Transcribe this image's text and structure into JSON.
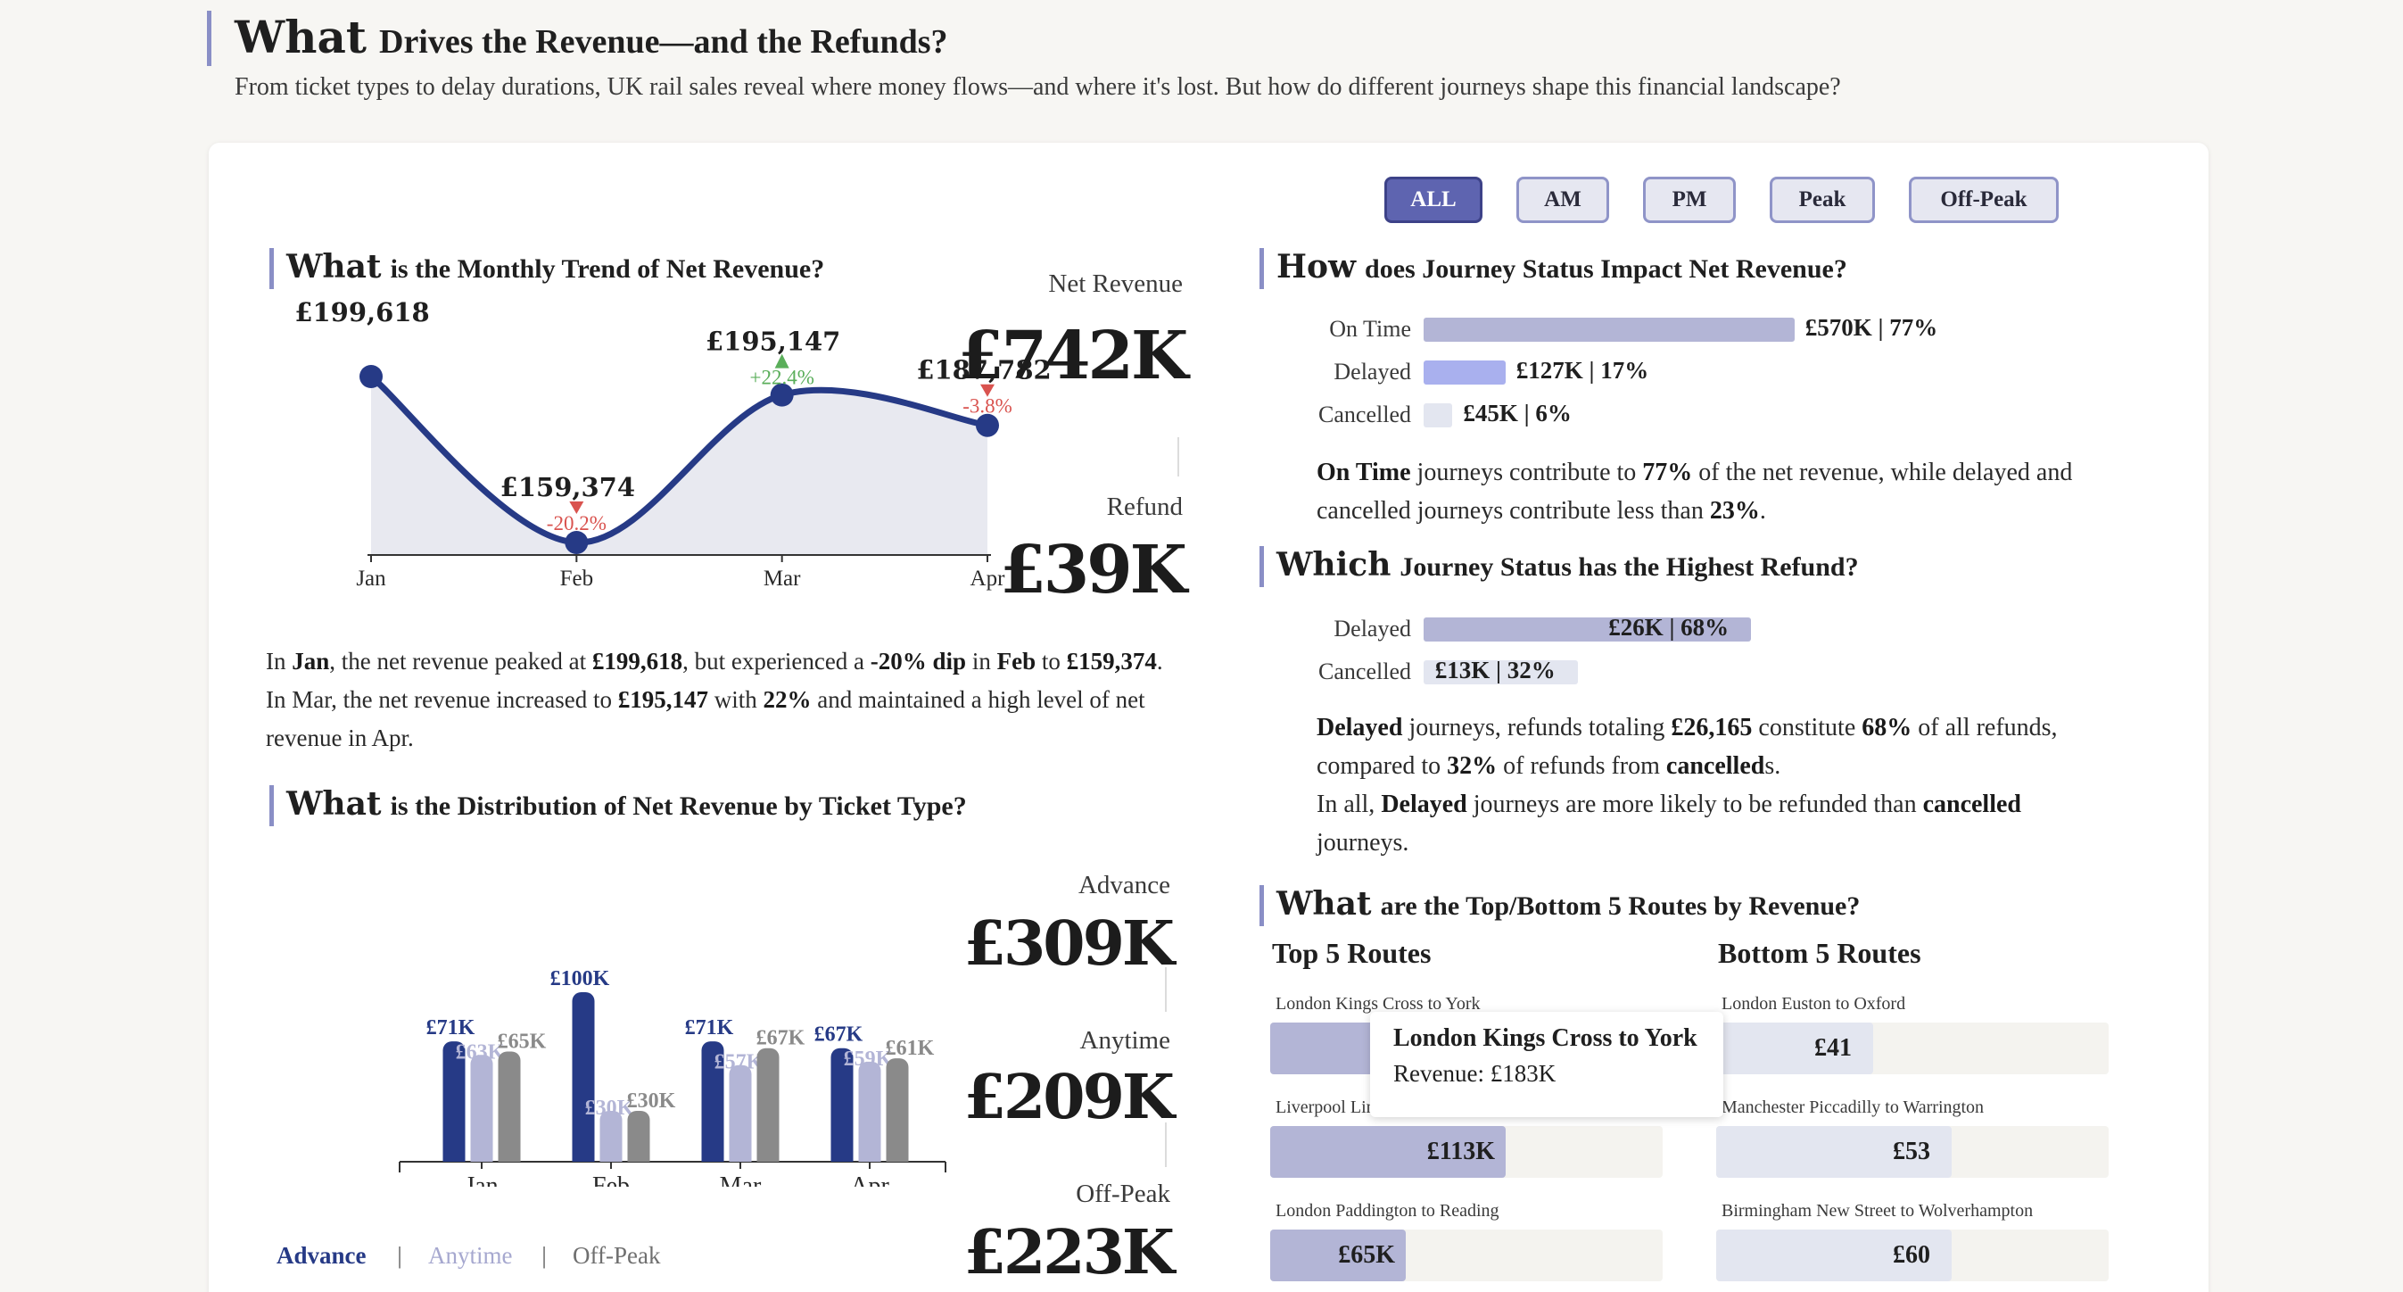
{
  "header": {
    "title_bold": "What",
    "title_rest": "Drives the Revenue—and the Refunds?",
    "subtitle": "From ticket types to delay durations, UK rail sales reveal where money flows—and where it's lost. But how do different journeys shape this financial landscape?"
  },
  "filters": [
    "ALL",
    "AM",
    "PM",
    "Peak",
    "Off-Peak"
  ],
  "filter_active": "ALL",
  "trend": {
    "title_bold": "What",
    "title_rest": "is the Monthly Trend of Net Revenue?",
    "points": [
      {
        "label": "£199,618",
        "change": ""
      },
      {
        "label": "£159,374",
        "change": "-20.2%"
      },
      {
        "label": "£195,147",
        "change": "+22.4%"
      },
      {
        "label": "£187,782",
        "change": "-3.8%"
      }
    ],
    "chart_data": {
      "type": "area",
      "categories": [
        "Jan",
        "Feb",
        "Mar",
        "Apr"
      ],
      "values": [
        199618,
        159374,
        195147,
        187782
      ],
      "changes": [
        "",
        "-20.2%",
        "+22.4%",
        "-3.8%"
      ],
      "ylim": [
        159374,
        199618
      ],
      "colors": {
        "line": "#263a86",
        "fill": "#e8e9f0",
        "up": "#5aae5a",
        "down": "#d9534f"
      }
    }
  },
  "kpi": {
    "net_label": "Net Revenue",
    "net_value": "£742K",
    "refund_label": "Refund",
    "refund_value": "£39K"
  },
  "trend_text": {
    "l1_a": "In ",
    "l1_b": "Jan",
    "l1_c": ", the net revenue peaked at ",
    "l1_d": "£199,618",
    "l1_e": ", but experienced a ",
    "l1_f": "-20% dip",
    "l1_g": " in ",
    "l1_h": "Feb",
    "l1_i": " to ",
    "l1_j": "£159,374",
    "l1_k": ".",
    "l2_a": "In Mar, the net revenue increased to ",
    "l2_b": "£195,147",
    "l2_c": " with ",
    "l2_d": "22%",
    "l2_e": " and maintained a high level of net",
    "l3": "revenue in Apr."
  },
  "ticket": {
    "title_bold": "What",
    "title_rest": "is the Distribution of Net Revenue by Ticket Type?",
    "labels": {
      "Advance": [
        "£71K",
        "£100K",
        "£71K",
        "£67K"
      ],
      "Anytime": [
        "£63K",
        "£30K",
        "£57K",
        "£59K"
      ],
      "Off-Peak": [
        "£65K",
        "£30K",
        "£67K",
        "£61K"
      ]
    },
    "chart_data": {
      "type": "bar",
      "categories": [
        "Jan",
        "Feb",
        "Mar",
        "Apr"
      ],
      "series": [
        {
          "name": "Advance",
          "values": [
            71,
            100,
            71,
            67
          ],
          "color": "#263a86"
        },
        {
          "name": "Anytime",
          "values": [
            63,
            30,
            57,
            59
          ],
          "color": "#b3b5d6"
        },
        {
          "name": "Off-Peak",
          "values": [
            65,
            30,
            67,
            61
          ],
          "color": "#8a8a8a"
        }
      ],
      "ylim": [
        0,
        100
      ]
    },
    "legend": [
      "Advance",
      "Anytime",
      "Off-Peak"
    ],
    "kpis": [
      {
        "label": "Advance",
        "value": "£309K"
      },
      {
        "label": "Anytime",
        "value": "£209K"
      },
      {
        "label": "Off-Peak",
        "value": "£223K"
      }
    ]
  },
  "status": {
    "title_bold": "How",
    "title_rest": "does Journey Status Impact Net Revenue?",
    "rows": [
      {
        "label": "On Time",
        "text": "£570K | 77%",
        "share": 0.77,
        "color": "#b3b5d6"
      },
      {
        "label": "Delayed",
        "text": "£127K | 17%",
        "share": 0.17,
        "color": "#a9b0ee"
      },
      {
        "label": "Cancelled",
        "text": "£45K | 6%",
        "share": 0.06,
        "color": "#e3e6f0"
      }
    ],
    "t1_a": "On Time",
    "t1_b": " journeys contribute to ",
    "t1_c": "77%",
    "t1_d": " of the net revenue, while delayed and",
    "t2_a": "cancelled journeys contribute less than ",
    "t2_b": "23%",
    "t2_c": "."
  },
  "refund": {
    "title_bold": "Which",
    "title_rest": "Journey Status has the Highest Refund?",
    "rows": [
      {
        "label": "Delayed",
        "text": "£26K | 68%",
        "share": 0.68,
        "color": "#b3b5d6"
      },
      {
        "label": "Cancelled",
        "text": "£13K | 32%",
        "share": 0.32,
        "color": "#e3e6f0"
      }
    ],
    "t1_a": "Delayed",
    "t1_b": " journeys, refunds totaling ",
    "t1_c": "£26,165",
    "t1_d": " constitute ",
    "t1_e": "68%",
    "t1_f": " of all refunds,",
    "t2_a": "compared to ",
    "t2_b": "32%",
    "t2_c": " of refunds from ",
    "t2_d": "cancelled",
    "t2_e": "s.",
    "t3_a": "In all, ",
    "t3_b": "Delayed",
    "t3_c": " journeys are more likely to be refunded than ",
    "t3_d": "cancelled",
    "t4": "journeys."
  },
  "routes": {
    "title_bold": "What",
    "title_rest": "are the Top/Bottom 5 Routes by Revenue?",
    "top_title": "Top 5 Routes",
    "bottom_title": "Bottom 5 Routes",
    "top": [
      {
        "name": "London Kings Cross to York",
        "value": "£183K",
        "share": 1.0
      },
      {
        "name": "Liverpool Lime Street to London Euston",
        "value": "£113K",
        "share": 0.6
      },
      {
        "name": "London Paddington to Reading",
        "value": "£65K",
        "share": 0.35
      }
    ],
    "bottom": [
      {
        "name": "London Euston to Oxford",
        "value": "£41",
        "share": 0.4
      },
      {
        "name": "Manchester Piccadilly to Warrington",
        "value": "£53",
        "share": 0.6
      },
      {
        "name": "Birmingham New Street to Wolverhampton",
        "value": "£60",
        "share": 0.6
      }
    ],
    "tooltip": {
      "title": "London Kings Cross to York",
      "label": "Revenue: £183K"
    }
  }
}
